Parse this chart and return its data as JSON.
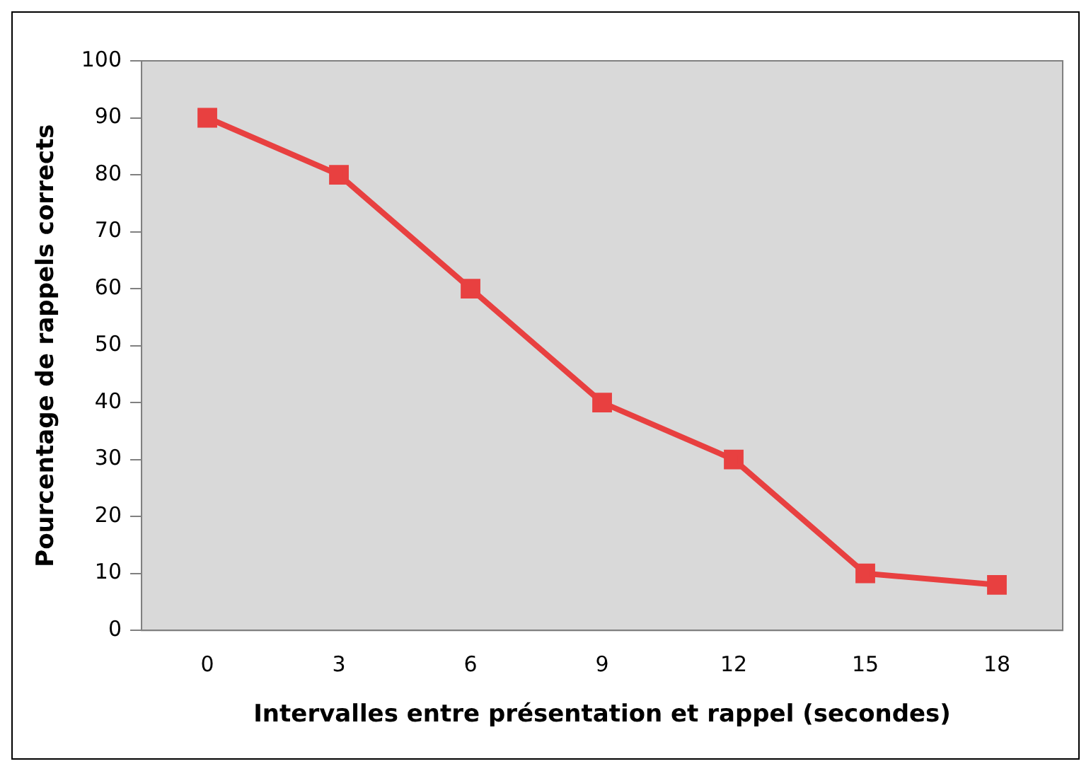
{
  "chart_data": {
    "type": "line",
    "xlabel": "Intervalles entre présentation et rappel (secondes)",
    "ylabel": "Pourcentage de rappels corrects",
    "categories": [
      "0",
      "3",
      "6",
      "9",
      "12",
      "15",
      "18"
    ],
    "series": [
      {
        "color": "#e84040",
        "values": [
          90,
          80,
          60,
          40,
          30,
          10,
          8
        ]
      }
    ],
    "ylim": [
      0,
      100
    ],
    "yticks": [
      0,
      10,
      20,
      30,
      40,
      50,
      60,
      70,
      80,
      90,
      100
    ],
    "grid": false,
    "legend": false,
    "marker": "square",
    "line_style": "solid"
  }
}
